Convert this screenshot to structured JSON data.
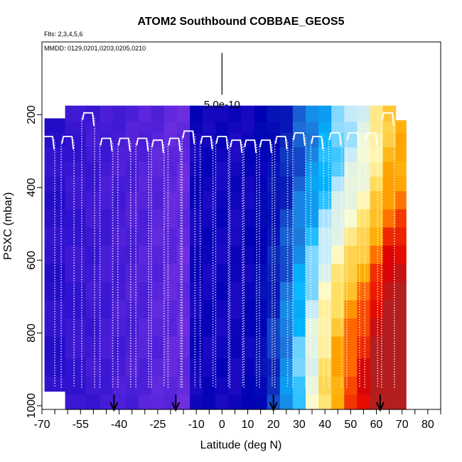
{
  "chart_data": {
    "type": "heatmap",
    "title": "ATOM2 Southbound COBBAE_GEOS5",
    "flights_note": "Flts: 2,3,4,5,6",
    "dates_note": "MMDD: 0129,0201,0203,0205,0210",
    "xlabel": "Latitude (deg N)",
    "ylabel": "PSXC (mbar)",
    "xlim": [
      -70,
      85
    ],
    "ylim": [
      1010,
      0
    ],
    "x_ticks": [
      -70,
      -55,
      -40,
      -25,
      -10,
      0,
      10,
      20,
      30,
      40,
      50,
      60,
      70,
      80
    ],
    "x_tick_labels": [
      "-70",
      "-55",
      "-40",
      "-25",
      "-10",
      "0",
      "10",
      "20",
      "30",
      "40",
      "50",
      "60",
      "70",
      "80"
    ],
    "x_minor_ticks": [
      -65,
      -60,
      -50,
      -45,
      -35,
      -30,
      -20,
      -15,
      -5,
      5,
      15,
      25,
      35,
      45,
      55,
      65,
      75,
      85
    ],
    "y_ticks": [
      200,
      400,
      600,
      800,
      1000
    ],
    "y_tick_labels": [
      "200",
      "400",
      "600",
      "800",
      "1000"
    ],
    "scale_label": "5.0e-10",
    "scale_bar": {
      "x": 0,
      "y_top": 30,
      "y_bottom": 145
    },
    "arrows_lat": [
      -42,
      -18,
      20,
      61.5
    ],
    "pressure_levels": [
      220,
      250,
      290,
      330,
      370,
      410,
      460,
      510,
      560,
      610,
      660,
      710,
      760,
      810,
      870,
      920,
      970,
      1010
    ],
    "latitudes": [
      -66,
      -56,
      -50,
      -45,
      -40,
      -35,
      -30,
      -25,
      -20,
      -15,
      -10,
      -5,
      0,
      5,
      10,
      15,
      20,
      25,
      30,
      35,
      40,
      45,
      50,
      55,
      60,
      65,
      70
    ],
    "column_tops": [
      210,
      175,
      175,
      175,
      175,
      175,
      175,
      175,
      175,
      175,
      175,
      175,
      175,
      175,
      175,
      175,
      175,
      175,
      175,
      175,
      175,
      175,
      175,
      175,
      175,
      175,
      215
    ],
    "column_bottoms": [
      960,
      1010,
      1010,
      1010,
      1010,
      1010,
      1010,
      1010,
      1010,
      1010,
      1010,
      1010,
      1010,
      1010,
      1010,
      1010,
      1010,
      1010,
      1010,
      1010,
      1010,
      1010,
      1010,
      1010,
      1010,
      1010,
      1010
    ],
    "color_scale": [
      "#8a2be2",
      "#6f2fe0",
      "#4b1ed8",
      "#2a10cc",
      "#0000b4",
      "#0a1eb8",
      "#1e78dc",
      "#00b4ff",
      "#bfe9ff",
      "#fffccc",
      "#ffe066",
      "#ffaa00",
      "#ff5a00",
      "#e00000",
      "#b41e1e"
    ],
    "profiles": [
      {
        "lat": -67.5,
        "top": 260
      },
      {
        "lat": -60,
        "top": 260
      },
      {
        "lat": -52,
        "top": 195
      },
      {
        "lat": -45,
        "top": 265
      },
      {
        "lat": -38,
        "top": 265
      },
      {
        "lat": -31,
        "top": 265
      },
      {
        "lat": -25,
        "top": 270
      },
      {
        "lat": -18.5,
        "top": 265
      },
      {
        "lat": -13,
        "top": 245
      },
      {
        "lat": -6,
        "top": 260
      },
      {
        "lat": 0,
        "top": 260
      },
      {
        "lat": 5.5,
        "top": 270
      },
      {
        "lat": 11,
        "top": 270
      },
      {
        "lat": 17,
        "top": 270
      },
      {
        "lat": 23,
        "top": 260
      },
      {
        "lat": 30,
        "top": 250
      },
      {
        "lat": 37,
        "top": 260
      },
      {
        "lat": 44,
        "top": 250
      },
      {
        "lat": 51,
        "top": 250
      },
      {
        "lat": 58,
        "top": 250
      },
      {
        "lat": 64.5,
        "top": 195
      }
    ]
  }
}
